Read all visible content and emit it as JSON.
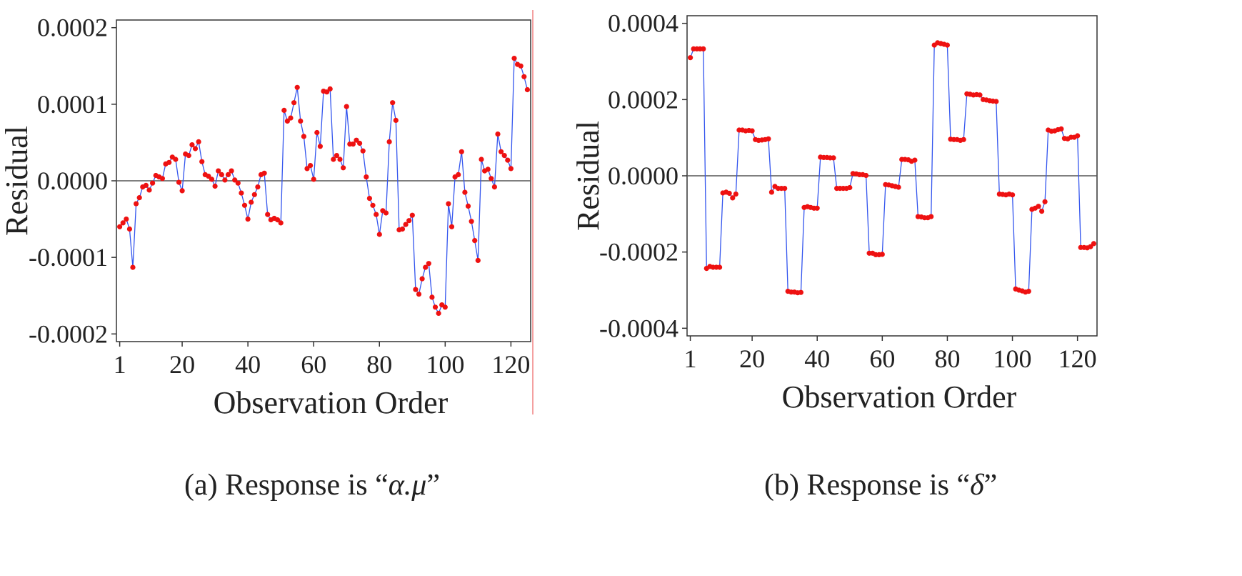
{
  "chart_data": [
    {
      "type": "line",
      "xlabel": "Observation Order",
      "ylabel": "Residual",
      "xlim": [
        0,
        126
      ],
      "ylim": [
        -0.00021,
        0.00021
      ],
      "x_ticks": [
        1,
        20,
        40,
        60,
        80,
        100,
        120
      ],
      "y_ticks": [
        -0.0002,
        -0.0001,
        0.0,
        0.0001,
        0.0002
      ],
      "y_tick_labels": [
        "-0.0002",
        "-0.0001",
        "0.0000",
        "0.0001",
        "0.0002"
      ],
      "reference_line": 0,
      "colors": {
        "line": "#3355ee",
        "marker": "#ee1111",
        "axis": "#333333"
      },
      "caption": {
        "prefix": "(a) Response is “",
        "symbol": "α.μ",
        "suffix": "”"
      },
      "series": [
        {
          "x": [
            1,
            2,
            3,
            4,
            5,
            6,
            7,
            8,
            9,
            10,
            11,
            12,
            13,
            14,
            15,
            16,
            17,
            18,
            19,
            20,
            21,
            22,
            23,
            24,
            25,
            26,
            27,
            28,
            29,
            30,
            31,
            32,
            33,
            34,
            35,
            36,
            37,
            38,
            39,
            40,
            41,
            42,
            43,
            44,
            45,
            46,
            47,
            48,
            49,
            50,
            51,
            52,
            53,
            54,
            55,
            56,
            57,
            58,
            59,
            60,
            61,
            62,
            63,
            64,
            65,
            66,
            67,
            68,
            69,
            70,
            71,
            72,
            73,
            74,
            75,
            76,
            77,
            78,
            79,
            80,
            81,
            82,
            83,
            84,
            85,
            86,
            87,
            88,
            89,
            90,
            91,
            92,
            93,
            94,
            95,
            96,
            97,
            98,
            99,
            100,
            101,
            102,
            103,
            104,
            105,
            106,
            107,
            108,
            109,
            110,
            111,
            112,
            113,
            114,
            115,
            116,
            117,
            118,
            119,
            120,
            121,
            122,
            123,
            124,
            125
          ],
          "y": [
            -6e-05,
            -5.5e-05,
            -5e-05,
            -6.3e-05,
            -0.000113,
            -3e-05,
            -2.2e-05,
            -8e-06,
            -6e-06,
            -1.2e-05,
            -3e-06,
            7e-06,
            5e-06,
            3e-06,
            2.2e-05,
            2.4e-05,
            3.1e-05,
            2.8e-05,
            -2e-06,
            -1.3e-05,
            3.5e-05,
            3.3e-05,
            4.7e-05,
            4.2e-05,
            5.1e-05,
            2.5e-05,
            8e-06,
            6e-06,
            2e-06,
            -7e-06,
            1.3e-05,
            8e-06,
            1e-06,
            8e-06,
            1.3e-05,
            1e-06,
            -3e-06,
            -1.6e-05,
            -3.2e-05,
            -5e-05,
            -2.8e-05,
            -1.8e-05,
            -8e-06,
            8e-06,
            1e-05,
            -4.4e-05,
            -5.1e-05,
            -4.9e-05,
            -5.1e-05,
            -5.5e-05,
            9.2e-05,
            7.8e-05,
            8.2e-05,
            0.000102,
            0.000122,
            7.8e-05,
            5.8e-05,
            1.6e-05,
            2e-05,
            2e-06,
            6.3e-05,
            4.5e-05,
            0.000117,
            0.000116,
            0.00012,
            2.8e-05,
            3.3e-05,
            2.8e-05,
            1.7e-05,
            9.7e-05,
            4.8e-05,
            4.8e-05,
            5.3e-05,
            4.9e-05,
            3.9e-05,
            5e-06,
            -2.3e-05,
            -3.2e-05,
            -4.4e-05,
            -7e-05,
            -3.9e-05,
            -4.2e-05,
            5.1e-05,
            0.000102,
            7.9e-05,
            -6.4e-05,
            -6.3e-05,
            -5.7e-05,
            -5.2e-05,
            -4.5e-05,
            -0.000142,
            -0.000148,
            -0.000128,
            -0.000113,
            -0.000108,
            -0.000152,
            -0.000165,
            -0.000173,
            -0.000162,
            -0.000165,
            -3e-05,
            -6e-05,
            5e-06,
            8e-06,
            3.8e-05,
            -1.5e-05,
            -3.3e-05,
            -5.3e-05,
            -7.8e-05,
            -0.000104,
            2.8e-05,
            1.3e-05,
            1.5e-05,
            3e-06,
            -8e-06,
            6.1e-05,
            3.8e-05,
            3.3e-05,
            2.7e-05,
            1.6e-05,
            0.00016,
            0.000152,
            0.00015,
            0.000136,
            0.000119
          ]
        }
      ]
    },
    {
      "type": "line",
      "xlabel": "Observation Order",
      "ylabel": "Residual",
      "xlim": [
        0,
        126
      ],
      "ylim": [
        -0.00042,
        0.00042
      ],
      "x_ticks": [
        1,
        20,
        40,
        60,
        80,
        100,
        120
      ],
      "y_ticks": [
        -0.0004,
        -0.0002,
        0.0,
        0.0002,
        0.0004
      ],
      "y_tick_labels": [
        "-0.0004",
        "-0.0002",
        "0.0000",
        "0.0002",
        "0.0004"
      ],
      "reference_line": 0,
      "colors": {
        "line": "#3355ee",
        "marker": "#ee1111",
        "axis": "#333333"
      },
      "caption": {
        "prefix": "(b) Response is “",
        "symbol": "δ",
        "suffix": "”"
      },
      "series": [
        {
          "x": [
            1,
            2,
            3,
            4,
            5,
            6,
            7,
            8,
            9,
            10,
            11,
            12,
            13,
            14,
            15,
            16,
            17,
            18,
            19,
            20,
            21,
            22,
            23,
            24,
            25,
            26,
            27,
            28,
            29,
            30,
            31,
            32,
            33,
            34,
            35,
            36,
            37,
            38,
            39,
            40,
            41,
            42,
            43,
            44,
            45,
            46,
            47,
            48,
            49,
            50,
            51,
            52,
            53,
            54,
            55,
            56,
            57,
            58,
            59,
            60,
            61,
            62,
            63,
            64,
            65,
            66,
            67,
            68,
            69,
            70,
            71,
            72,
            73,
            74,
            75,
            76,
            77,
            78,
            79,
            80,
            81,
            82,
            83,
            84,
            85,
            86,
            87,
            88,
            89,
            90,
            91,
            92,
            93,
            94,
            95,
            96,
            97,
            98,
            99,
            100,
            101,
            102,
            103,
            104,
            105,
            106,
            107,
            108,
            109,
            110,
            111,
            112,
            113,
            114,
            115,
            116,
            117,
            118,
            119,
            120,
            121,
            122,
            123,
            124,
            125
          ],
          "y": [
            0.00031,
            0.000333,
            0.000333,
            0.000333,
            0.000333,
            -0.000243,
            -0.000238,
            -0.00024,
            -0.00024,
            -0.00024,
            -4.5e-05,
            -4.3e-05,
            -4.6e-05,
            -5.8e-05,
            -4.8e-05,
            0.00012,
            0.00012,
            0.000118,
            0.000119,
            0.000118,
            9.5e-05,
            9.3e-05,
            9.4e-05,
            9.5e-05,
            9.7e-05,
            -4.3e-05,
            -2.8e-05,
            -3.3e-05,
            -3.3e-05,
            -3.3e-05,
            -0.000303,
            -0.000305,
            -0.000305,
            -0.000307,
            -0.000306,
            -8.3e-05,
            -8.1e-05,
            -8.3e-05,
            -8.5e-05,
            -8.5e-05,
            4.9e-05,
            4.8e-05,
            4.8e-05,
            4.7e-05,
            4.7e-05,
            -3.3e-05,
            -3.3e-05,
            -3.3e-05,
            -3.3e-05,
            -3.1e-05,
            6e-06,
            5e-06,
            3e-06,
            3e-06,
            1e-06,
            -0.000203,
            -0.000203,
            -0.000207,
            -0.000207,
            -0.000206,
            -2.3e-05,
            -2.4e-05,
            -2.6e-05,
            -2.8e-05,
            -3e-05,
            4.3e-05,
            4.3e-05,
            4.2e-05,
            3.8e-05,
            4.1e-05,
            -0.000107,
            -0.000108,
            -0.00011,
            -0.00011,
            -0.000107,
            0.000343,
            0.000349,
            0.000347,
            0.000345,
            0.000343,
            9.6e-05,
            9.5e-05,
            9.5e-05,
            9.3e-05,
            9.5e-05,
            0.000215,
            0.000214,
            0.000212,
            0.000213,
            0.000212,
            0.0002,
            0.000199,
            0.000197,
            0.000196,
            0.000195,
            -4.8e-05,
            -4.9e-05,
            -5e-05,
            -4.8e-05,
            -5e-05,
            -0.000297,
            -0.0003,
            -0.000302,
            -0.000305,
            -0.000303,
            -8.8e-05,
            -8.5e-05,
            -8e-05,
            -9.3e-05,
            -6.8e-05,
            0.00012,
            0.000117,
            0.000118,
            0.000121,
            0.000123,
            9.8e-05,
            9.7e-05,
            0.000101,
            0.000101,
            0.000105,
            -0.000188,
            -0.000188,
            -0.000189,
            -0.000186,
            -0.000178
          ]
        }
      ]
    }
  ]
}
